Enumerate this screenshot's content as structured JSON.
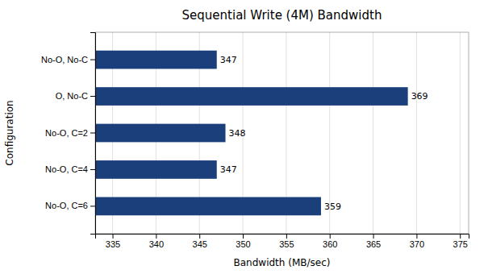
{
  "chart_data": {
    "type": "bar",
    "orientation": "horizontal",
    "title": "Sequential Write (4M) Bandwidth",
    "categories": [
      "No-O, No-C",
      "O, No-C",
      "No-O, C=2",
      "No-O, C=4",
      "No-O, C=6"
    ],
    "values": [
      347,
      369,
      348,
      347,
      359
    ],
    "color": "#1a3f7a",
    "xlabel": "Bandwidth (MB/sec)",
    "ylabel": "Configuration",
    "xlim": [
      333,
      376
    ],
    "xticks": [
      335,
      340,
      345,
      350,
      355,
      360,
      365,
      370,
      375
    ],
    "grid": true,
    "data_labels": true
  }
}
